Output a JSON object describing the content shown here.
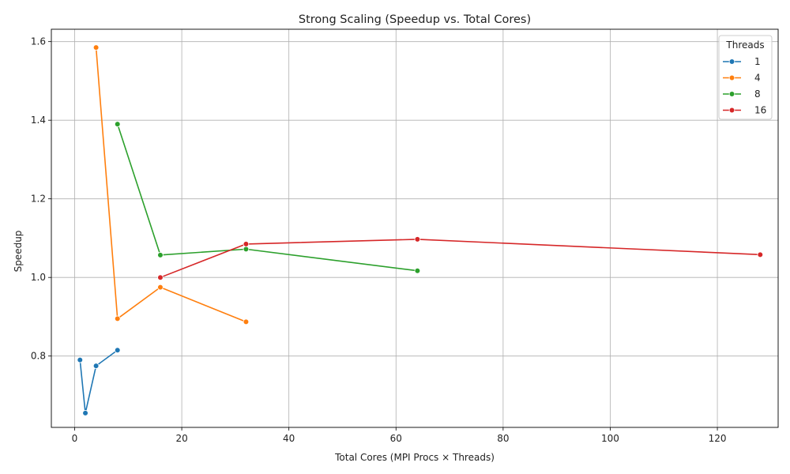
{
  "chart_data": {
    "type": "line",
    "title": "Strong Scaling (Speedup vs. Total Cores)",
    "xlabel": "Total Cores (MPI Procs × Threads)",
    "ylabel": "Speedup",
    "xlim": [
      -4.35,
      131.35
    ],
    "ylim": [
      0.6185,
      1.6315
    ],
    "xticks": [
      0,
      20,
      40,
      60,
      80,
      100,
      120
    ],
    "yticks": [
      0.8,
      1.0,
      1.2,
      1.4,
      1.6
    ],
    "ytick_labels": [
      "0.8",
      "1.0",
      "1.2",
      "1.4",
      "1.6"
    ],
    "grid": true,
    "legend": {
      "title": "Threads",
      "position": "top-right"
    },
    "series": [
      {
        "name": "1",
        "color": "#1f77b4",
        "x": [
          1,
          2,
          4,
          8
        ],
        "y": [
          0.79,
          0.655,
          0.775,
          0.815
        ]
      },
      {
        "name": "4",
        "color": "#ff7f0e",
        "x": [
          4,
          8,
          16,
          32
        ],
        "y": [
          1.585,
          0.895,
          0.975,
          0.887
        ]
      },
      {
        "name": "8",
        "color": "#2ca02c",
        "x": [
          8,
          16,
          32,
          64
        ],
        "y": [
          1.39,
          1.057,
          1.072,
          1.017
        ]
      },
      {
        "name": "16",
        "color": "#d62728",
        "x": [
          16,
          32,
          64,
          128
        ],
        "y": [
          1.0,
          1.085,
          1.097,
          1.058
        ]
      }
    ]
  }
}
